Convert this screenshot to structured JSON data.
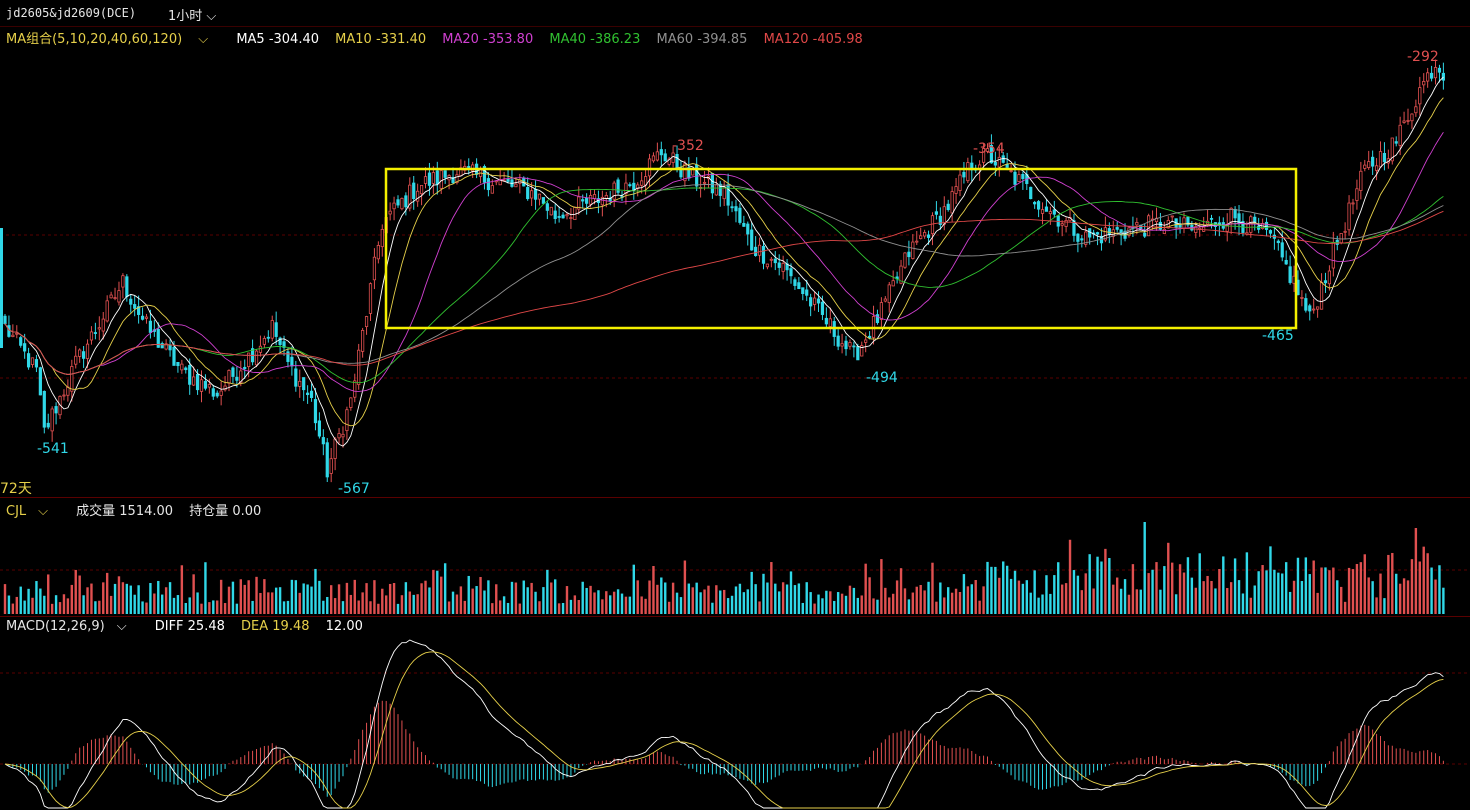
{
  "header": {
    "symbol": "jd2605&jd2609(DCE)",
    "period": "1小时"
  },
  "ma_legend": {
    "group": "MA组合(5,10,20,40,60,120)",
    "items": [
      {
        "label": "MA5 -304.40",
        "color": "#ffffff"
      },
      {
        "label": "MA10 -331.40",
        "color": "#e6d04a"
      },
      {
        "label": "MA20 -353.80",
        "color": "#d040d0"
      },
      {
        "label": "MA40 -386.23",
        "color": "#30c030"
      },
      {
        "label": "MA60 -394.85",
        "color": "#909090"
      },
      {
        "label": "MA120 -405.98",
        "color": "#e04848"
      }
    ]
  },
  "price_labels": {
    "low1": "-541",
    "low2": "-567",
    "high1": "-352",
    "low3": "-494",
    "high2": "-354",
    "low4": "-465",
    "high3": "-292",
    "days": "72天"
  },
  "volume_legend": {
    "title": "CJL",
    "value": "成交量 1514.00",
    "oi": "持仓量 0.00"
  },
  "macd_legend": {
    "title": "MACD(12,26,9)",
    "diff": "DIFF 25.48",
    "dea": "DEA 19.48",
    "macd": "12.00"
  },
  "chart_data": {
    "type": "candlestick",
    "ylim": [
      -580,
      -280
    ],
    "colors": {
      "up": "#e05050",
      "down": "#30d8e8",
      "box": "#f4f000"
    },
    "anchors": [
      [
        0,
        -470
      ],
      [
        8,
        -500
      ],
      [
        10,
        -541
      ],
      [
        18,
        -495
      ],
      [
        30,
        -440
      ],
      [
        36,
        -470
      ],
      [
        45,
        -500
      ],
      [
        54,
        -515
      ],
      [
        62,
        -490
      ],
      [
        68,
        -470
      ],
      [
        72,
        -495
      ],
      [
        78,
        -520
      ],
      [
        82,
        -567
      ],
      [
        88,
        -520
      ],
      [
        92,
        -460
      ],
      [
        96,
        -400
      ],
      [
        105,
        -375
      ],
      [
        115,
        -365
      ],
      [
        125,
        -372
      ],
      [
        135,
        -380
      ],
      [
        140,
        -395
      ],
      [
        150,
        -385
      ],
      [
        160,
        -372
      ],
      [
        167,
        -352
      ],
      [
        175,
        -370
      ],
      [
        183,
        -380
      ],
      [
        190,
        -415
      ],
      [
        198,
        -430
      ],
      [
        210,
        -470
      ],
      [
        216,
        -490
      ],
      [
        223,
        -460
      ],
      [
        230,
        -420
      ],
      [
        240,
        -388
      ],
      [
        246,
        -360
      ],
      [
        250,
        -354
      ],
      [
        258,
        -372
      ],
      [
        265,
        -390
      ],
      [
        275,
        -410
      ],
      [
        285,
        -405
      ],
      [
        295,
        -400
      ],
      [
        303,
        -405
      ],
      [
        312,
        -395
      ],
      [
        322,
        -410
      ],
      [
        328,
        -440
      ],
      [
        332,
        -465
      ],
      [
        338,
        -420
      ],
      [
        346,
        -365
      ],
      [
        354,
        -345
      ],
      [
        360,
        -310
      ],
      [
        364,
        -292
      ],
      [
        366,
        -298
      ]
    ],
    "ma_series": [
      {
        "name": "MA5",
        "color": "#ffffff",
        "lag": 3
      },
      {
        "name": "MA10",
        "color": "#e6d04a",
        "lag": 6
      },
      {
        "name": "MA20",
        "color": "#d040d0",
        "lag": 12
      },
      {
        "name": "MA40",
        "color": "#30c030",
        "lag": 24
      },
      {
        "name": "MA60",
        "color": "#909090",
        "lag": 36
      },
      {
        "name": "MA120",
        "color": "#e04848",
        "lag": 72
      }
    ]
  }
}
